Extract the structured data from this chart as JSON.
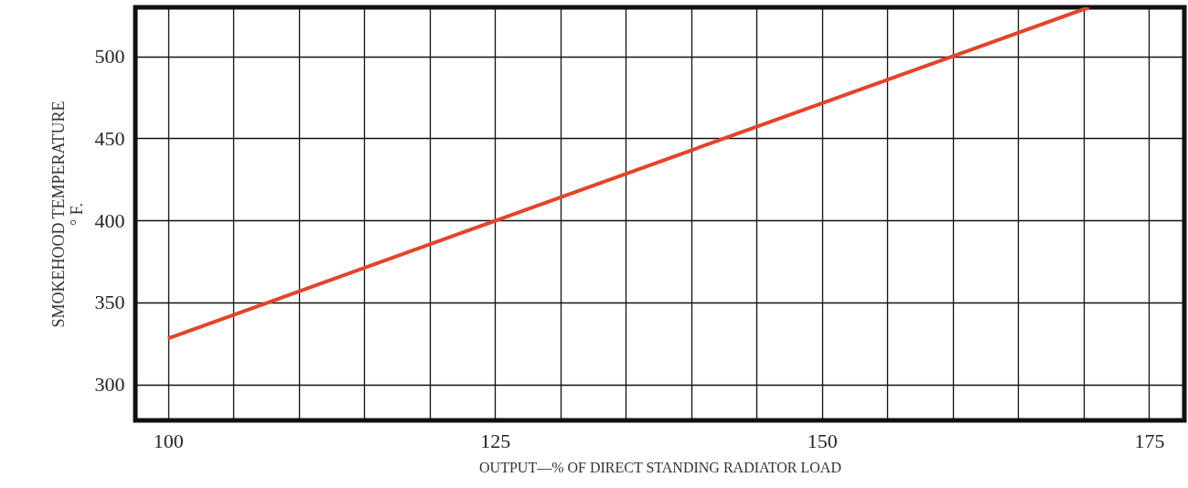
{
  "chart_data": {
    "type": "line",
    "xlabel": "OUTPUT—% OF DIRECT STANDING RADIATOR LOAD",
    "ylabel": "SMOKEHOOD TEMPERATURE\n° F.",
    "x": [
      100,
      170.4
    ],
    "series": [
      {
        "color": "#e5432b",
        "values": [
          328,
          530
        ]
      }
    ],
    "xlim": [
      97.5,
      177.7
    ],
    "ylim": [
      278,
      530
    ],
    "xticks": [
      100,
      {
        "value": 105,
        "label": null
      },
      {
        "value": 110,
        "label": null
      },
      {
        "value": 115,
        "label": null
      },
      {
        "value": 120,
        "label": null
      },
      125,
      {
        "value": 130,
        "label": null
      },
      {
        "value": 135,
        "label": null
      },
      {
        "value": 140,
        "label": null
      },
      {
        "value": 145,
        "label": null
      },
      150,
      {
        "value": 155,
        "label": null
      },
      {
        "value": 160,
        "label": null
      },
      {
        "value": 165,
        "label": null
      },
      {
        "value": 170,
        "label": null
      },
      175
    ],
    "yticks": [
      300,
      350,
      400,
      450,
      500
    ],
    "grid": true,
    "marker": "none",
    "line_style": "solid"
  }
}
